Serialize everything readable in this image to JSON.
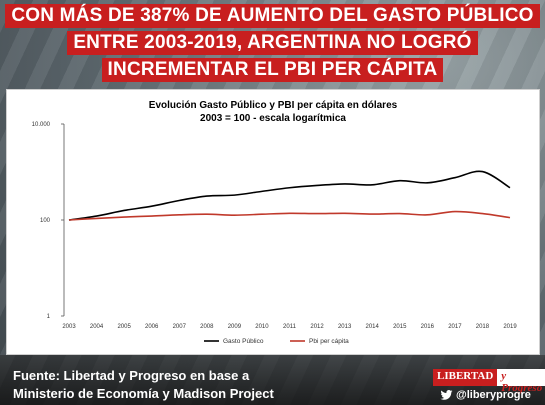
{
  "headline": {
    "line1": "CON MÁS DE 387% DE AUMENTO DEL GASTO PÚBLICO",
    "line2": "ENTRE 2003-2019, ARGENTINA NO LOGRÓ",
    "line3": "INCREMENTAR EL PBI PER CÁPITA"
  },
  "footer": {
    "source_line1": "Fuente: Libertad y Progreso en base a",
    "source_line2": "Ministerio de Economía y Madison Project",
    "brand_part1": "LIBERTAD",
    "brand_part2": "y Progreso",
    "twitter_handle": "@liberyprogre",
    "twitter_icon": "twitter-bird-icon"
  },
  "colors": {
    "accent": "#c81f1f",
    "series_gasto": "#000000",
    "series_pbi": "#c0392b"
  },
  "chart_data": {
    "type": "line",
    "title": "Evolución Gasto Público y PBI per cápita en dólares",
    "subtitle": "2003 = 100 - escala logarítmica",
    "y_scale": "log",
    "ylim": [
      1,
      10000
    ],
    "y_ticks": [
      "10.000",
      "100",
      "1"
    ],
    "y_tick_values": [
      10000,
      100,
      1
    ],
    "x": [
      "2003",
      "2004",
      "2005",
      "2006",
      "2007",
      "2008",
      "2009",
      "2010",
      "2011",
      "2012",
      "2013",
      "2014",
      "2015",
      "2016",
      "2017",
      "2018",
      "2019"
    ],
    "series": [
      {
        "name": "Gasto Público",
        "values": [
          100,
          121,
          158,
          194,
          255,
          315,
          330,
          395,
          470,
          525,
          565,
          540,
          660,
          595,
          760,
          1020,
          470
        ]
      },
      {
        "name": "Pbi per cápita",
        "values": [
          100,
          108,
          115,
          121,
          128,
          132,
          126,
          132,
          138,
          136,
          138,
          133,
          136,
          128,
          150,
          136,
          112
        ]
      }
    ],
    "grid": false,
    "legend_position": "bottom"
  }
}
